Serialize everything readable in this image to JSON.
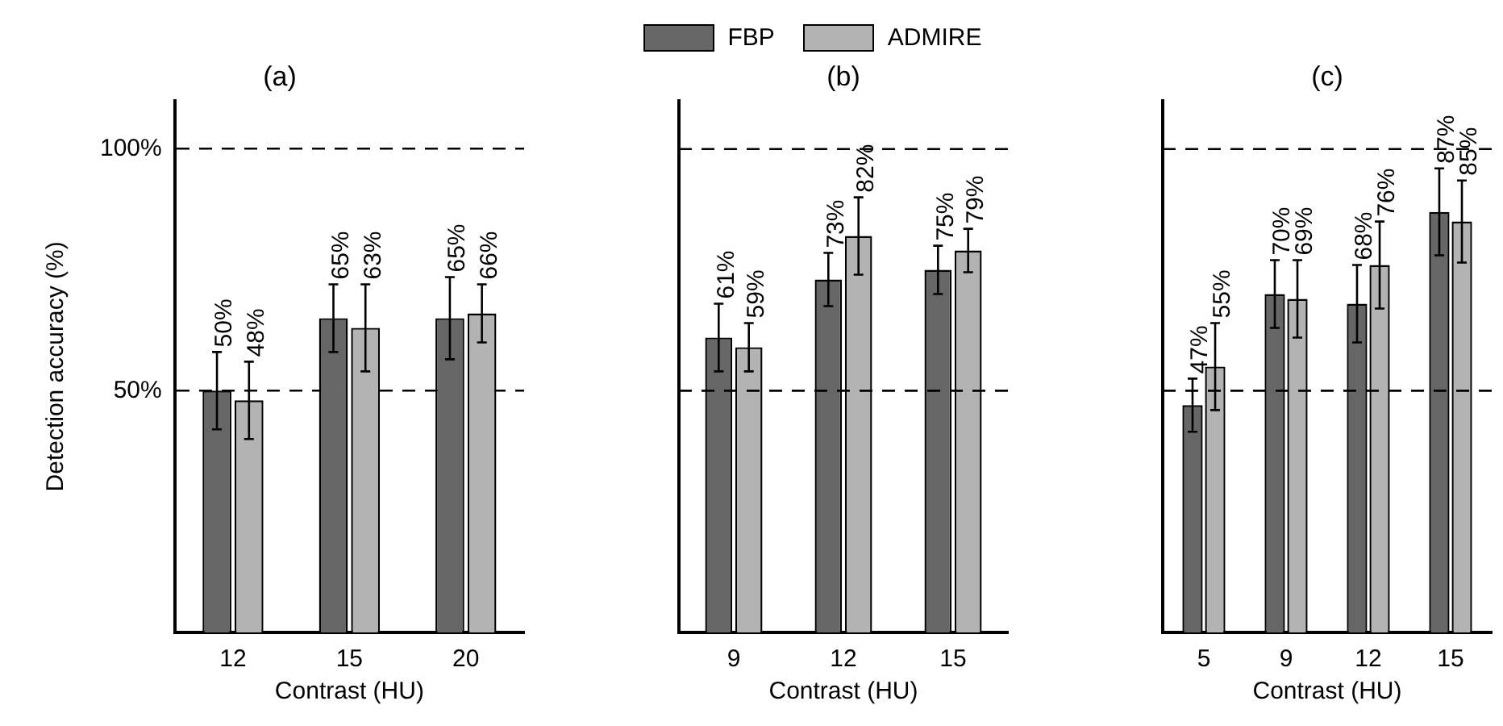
{
  "chart_data": [
    {
      "type": "bar",
      "title": "(a)",
      "xlabel": "Contrast (HU)",
      "ylabel": "Detection accuracy (%)",
      "categories": [
        "12",
        "15",
        "20"
      ],
      "series": [
        {
          "name": "FBP",
          "color": "#666666",
          "values": [
            50,
            65,
            65
          ],
          "errors": [
            8,
            7,
            8.5
          ],
          "value_labels": [
            "50%",
            "65%",
            "65%"
          ]
        },
        {
          "name": "ADMIRE",
          "color": "#b3b3b3",
          "values": [
            48,
            63,
            66
          ],
          "errors": [
            8,
            9,
            6
          ],
          "value_labels": [
            "48%",
            "63%",
            "66%"
          ]
        }
      ],
      "ylim": [
        0,
        110
      ],
      "yticks": [
        {
          "value": 50,
          "label": "50%"
        },
        {
          "value": 100,
          "label": "100%"
        }
      ],
      "grid": "y",
      "line_style": "dashed",
      "legend": "top"
    },
    {
      "type": "bar",
      "title": "(b)",
      "xlabel": "Contrast (HU)",
      "categories": [
        "9",
        "12",
        "15"
      ],
      "series": [
        {
          "color": "#666666",
          "values": [
            61,
            73,
            75
          ],
          "errors": [
            7,
            5.5,
            5
          ],
          "value_labels": [
            "61%",
            "73%",
            "75%"
          ]
        },
        {
          "color": "#b3b3b3",
          "values": [
            59,
            82,
            79
          ],
          "errors": [
            5,
            8,
            4.5
          ],
          "value_labels": [
            "59%",
            "82%",
            "79%"
          ]
        }
      ],
      "ylim": [
        0,
        110
      ],
      "tick_labels": "x",
      "ref_lines": [
        {
          "axis": "y",
          "value": 50,
          "line_style": "dashed"
        },
        {
          "axis": "y",
          "value": 100,
          "line_style": "dashed"
        }
      ]
    },
    {
      "type": "bar",
      "title": "(c)",
      "xlabel": "Contrast (HU)",
      "categories": [
        "5",
        "9",
        "12",
        "15"
      ],
      "series": [
        {
          "color": "#666666",
          "values": [
            47,
            70,
            68,
            87
          ],
          "errors": [
            5.5,
            7,
            8,
            9
          ],
          "value_labels": [
            "47%",
            "70%",
            "68%",
            "87%"
          ]
        },
        {
          "color": "#b3b3b3",
          "values": [
            55,
            69,
            76,
            85
          ],
          "errors": [
            9,
            8,
            9,
            8.5
          ],
          "value_labels": [
            "55%",
            "69%",
            "76%",
            "85%"
          ]
        }
      ],
      "ylim": [
        0,
        110
      ],
      "tick_labels": "x",
      "ref_lines": [
        {
          "axis": "y",
          "value": 50,
          "line_style": "dashed"
        },
        {
          "axis": "y",
          "value": 100,
          "line_style": "dashed"
        }
      ]
    }
  ]
}
